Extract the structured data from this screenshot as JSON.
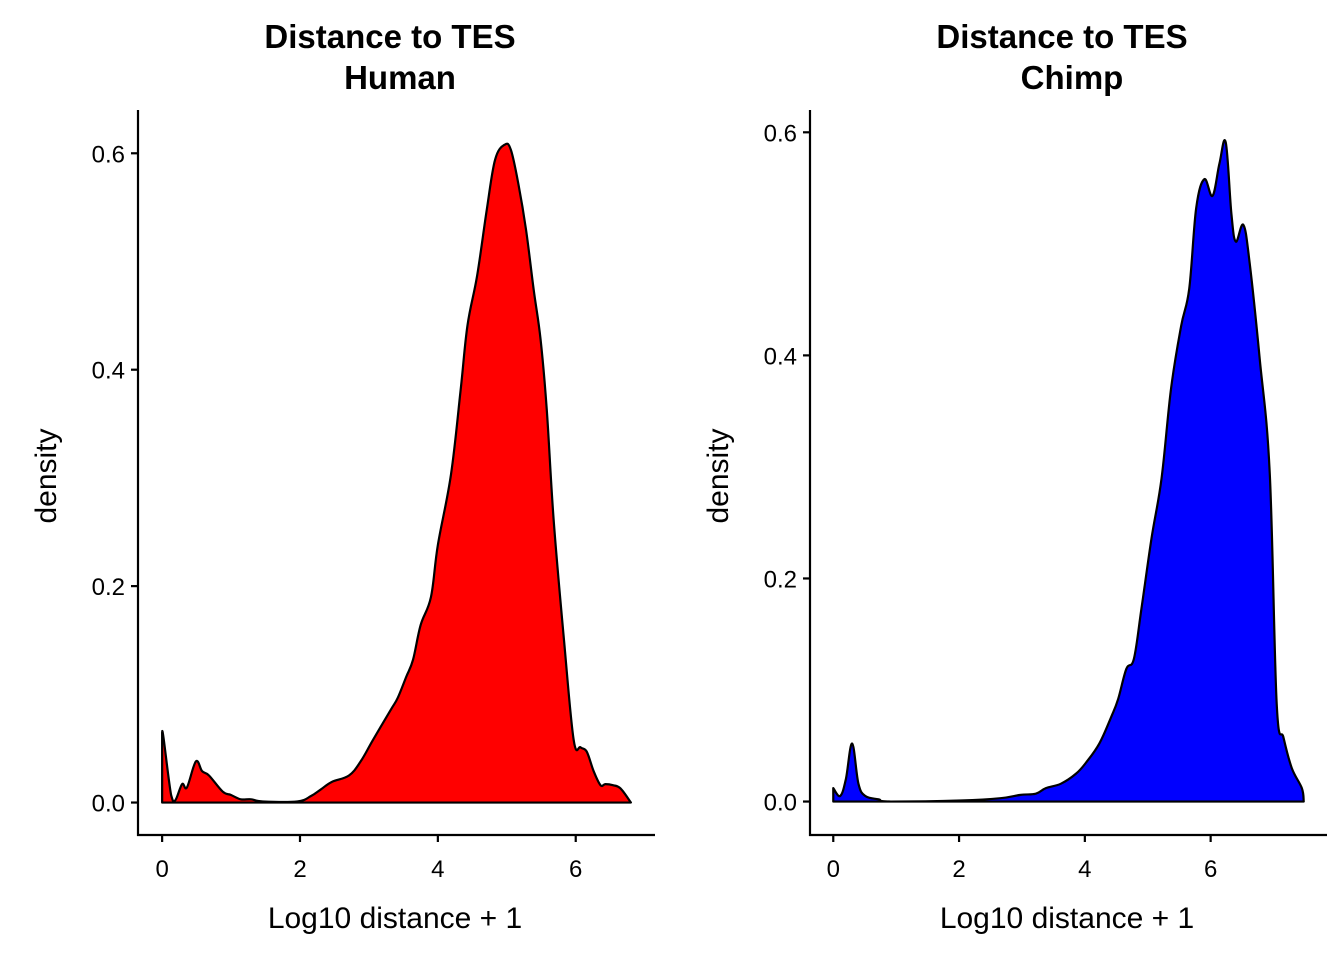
{
  "chart_data": [
    {
      "type": "area",
      "title": [
        "Distance to TES",
        "Human"
      ],
      "xlabel": "Log10 distance + 1",
      "ylabel": "density",
      "xlim": [
        -0.35,
        7.15
      ],
      "ylim": [
        -0.03,
        0.64
      ],
      "xticks": [
        0,
        2,
        4,
        6
      ],
      "xtick_labels": [
        "0",
        "2",
        "4",
        "6"
      ],
      "yticks": [
        0.0,
        0.2,
        0.4,
        0.6
      ],
      "ytick_labels": [
        "0.0",
        "0.2",
        "0.4",
        "0.6"
      ],
      "grid": false,
      "fill_color": "#ff0000",
      "line_color": "#000000",
      "x": [
        0,
        0.02,
        0.13,
        0.19,
        0.29,
        0.36,
        0.49,
        0.58,
        0.68,
        0.88,
        1.0,
        1.14,
        1.29,
        1.46,
        1.96,
        2.16,
        2.3,
        2.46,
        2.71,
        2.88,
        3.06,
        3.32,
        3.42,
        3.54,
        3.64,
        3.75,
        3.9,
        4.0,
        4.19,
        4.33,
        4.43,
        4.57,
        4.71,
        4.83,
        4.97,
        5.06,
        5.17,
        5.28,
        5.39,
        5.49,
        5.58,
        5.68,
        5.83,
        5.97,
        6.07,
        6.16,
        6.26,
        6.36,
        6.43,
        6.54,
        6.65,
        6.8
      ],
      "y": [
        0.065,
        0.06,
        0.007,
        0.002,
        0.017,
        0.014,
        0.038,
        0.029,
        0.025,
        0.01,
        0.007,
        0.003,
        0.003,
        0.001,
        0.001,
        0.006,
        0.012,
        0.019,
        0.025,
        0.038,
        0.058,
        0.086,
        0.097,
        0.116,
        0.132,
        0.164,
        0.19,
        0.238,
        0.303,
        0.381,
        0.441,
        0.487,
        0.548,
        0.594,
        0.608,
        0.603,
        0.571,
        0.529,
        0.474,
        0.428,
        0.363,
        0.261,
        0.15,
        0.058,
        0.051,
        0.047,
        0.029,
        0.016,
        0.017,
        0.016,
        0.013,
        0.0
      ]
    },
    {
      "type": "area",
      "title": [
        "Distance to TES",
        "Chimp"
      ],
      "xlabel": "Log10 distance + 1",
      "ylabel": "density",
      "xlim": [
        -0.37,
        7.85
      ],
      "ylim": [
        -0.03,
        0.62
      ],
      "xticks": [
        0,
        2,
        4,
        6
      ],
      "xtick_labels": [
        "0",
        "2",
        "4",
        "6"
      ],
      "yticks": [
        0.0,
        0.2,
        0.4,
        0.6
      ],
      "ytick_labels": [
        "0.0",
        "0.2",
        "0.4",
        "0.6"
      ],
      "grid": false,
      "fill_color": "#0000ff",
      "line_color": "#000000",
      "x": [
        0,
        0.11,
        0.2,
        0.3,
        0.4,
        0.51,
        0.72,
        0.91,
        2.03,
        2.66,
        2.98,
        3.22,
        3.38,
        3.62,
        3.86,
        4.02,
        4.23,
        4.42,
        4.53,
        4.66,
        4.78,
        4.9,
        5.06,
        5.22,
        5.37,
        5.53,
        5.66,
        5.77,
        5.9,
        6.03,
        6.14,
        6.24,
        6.33,
        6.4,
        6.52,
        6.62,
        6.78,
        6.94,
        7.05,
        7.16,
        7.29,
        7.45,
        7.48
      ],
      "y": [
        0.012,
        0.005,
        0.02,
        0.052,
        0.016,
        0.005,
        0.002,
        0.0,
        0.001,
        0.003,
        0.006,
        0.007,
        0.012,
        0.016,
        0.025,
        0.035,
        0.052,
        0.076,
        0.092,
        0.119,
        0.128,
        0.173,
        0.236,
        0.29,
        0.37,
        0.426,
        0.46,
        0.532,
        0.558,
        0.543,
        0.572,
        0.591,
        0.527,
        0.502,
        0.517,
        0.483,
        0.397,
        0.294,
        0.088,
        0.057,
        0.03,
        0.012,
        0.0
      ]
    }
  ]
}
